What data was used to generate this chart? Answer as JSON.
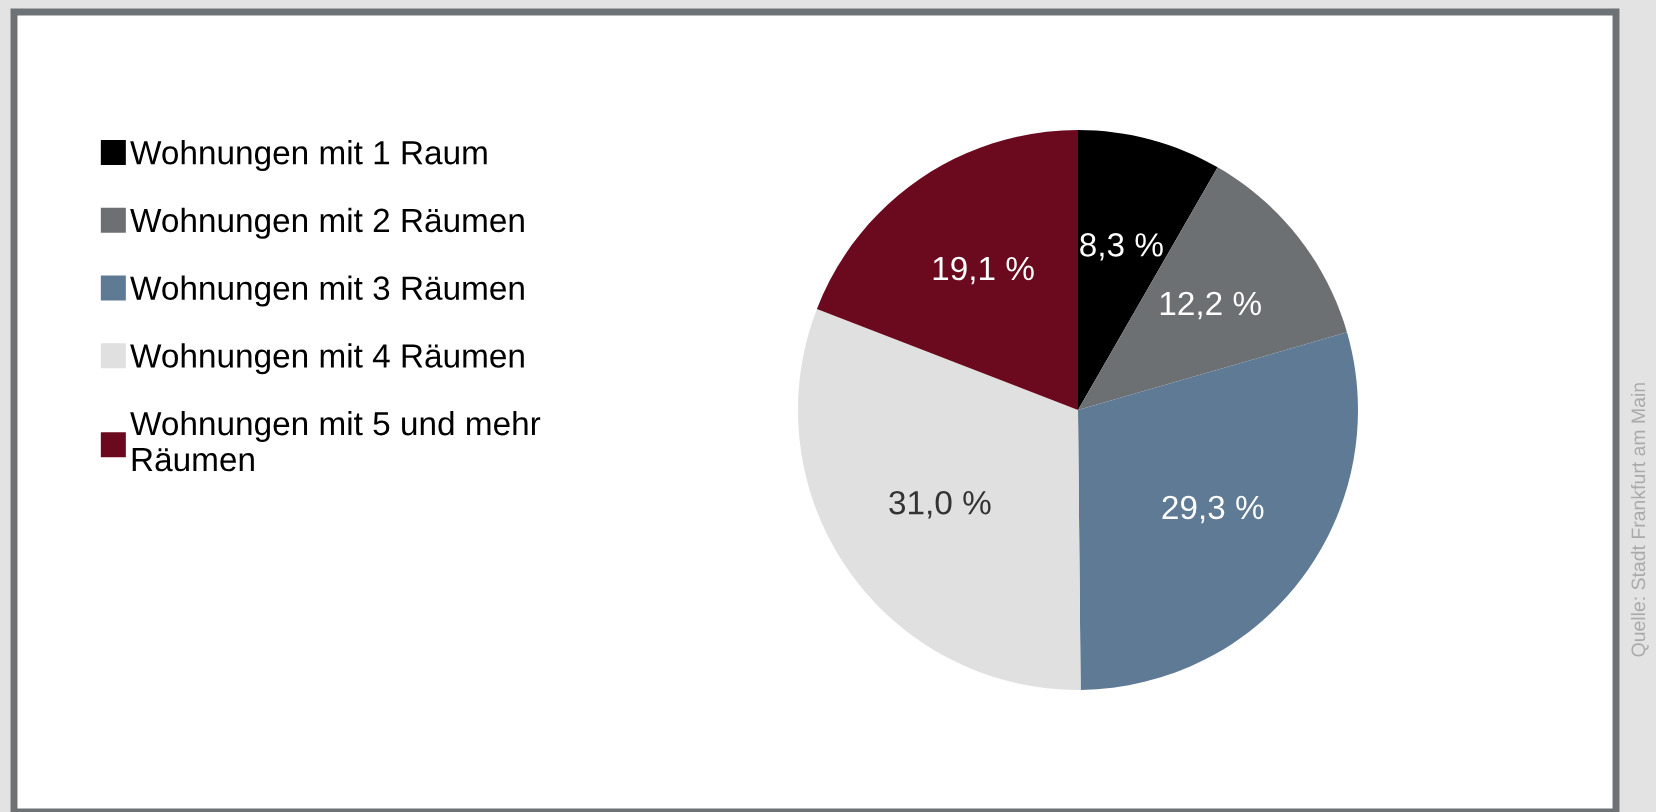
{
  "chart_data": {
    "type": "pie",
    "categories": [
      "Wohnungen mit 1 Raum",
      "Wohnungen mit 2 Räumen",
      "Wohnungen mit 3 Räumen",
      "Wohnungen mit 4 Räumen",
      "Wohnungen mit 5 und mehr\nRäumen"
    ],
    "values": [
      8.3,
      12.2,
      29.3,
      31.0,
      19.1
    ],
    "value_labels": [
      "8,3 %",
      "12,2 %",
      "29,3 %",
      "31,0 %",
      "19,1 %"
    ],
    "colors": [
      "#000000",
      "#6d7073",
      "#5e7a94",
      "#e0e0e0",
      "#6b0a1e"
    ],
    "legend": "left",
    "annotations": [
      "Quelle: Stadt Frankfurt am Main"
    ]
  }
}
